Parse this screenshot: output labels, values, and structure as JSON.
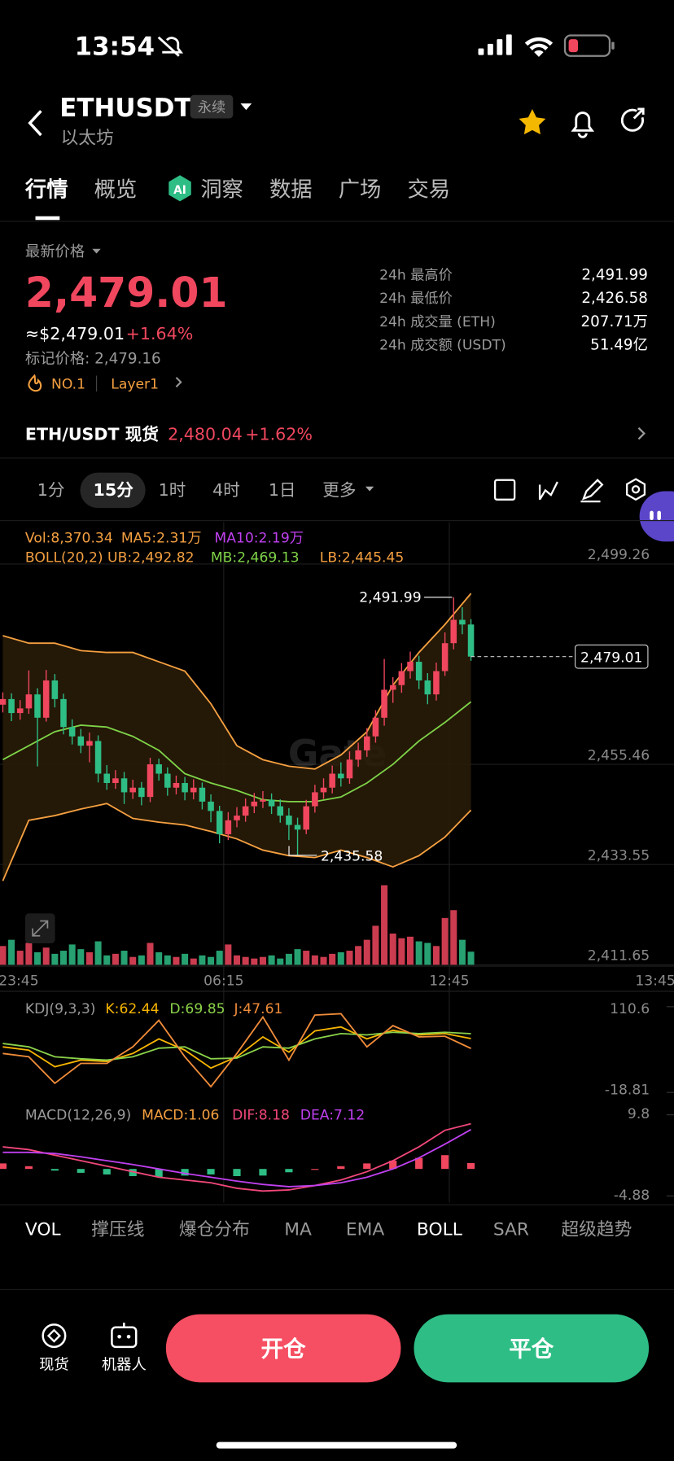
{
  "status_bar": {
    "time": "13:54"
  },
  "header": {
    "symbol": "ETHUSDT",
    "badge": "永续",
    "name": "以太坊"
  },
  "tabs": [
    "行情",
    "概览",
    "洞察",
    "数据",
    "广场",
    "交易"
  ],
  "price": {
    "label": "最新价格",
    "last": "2,479.01",
    "usd": "≈$2,479.01",
    "change": "+1.64%",
    "mark_price": "标记价格: 2,479.16",
    "rank": "NO.1",
    "tag": "Layer1"
  },
  "stats": [
    {
      "label": "24h 最高价",
      "value": "2,491.99"
    },
    {
      "label": "24h 最低价",
      "value": "2,426.58"
    },
    {
      "label": "24h 成交量 (ETH)",
      "value": "207.71万"
    },
    {
      "label": "24h 成交额 (USDT)",
      "value": "51.49亿"
    }
  ],
  "spot": {
    "label": "ETH/USDT 现货",
    "price": "2,480.04",
    "change": "+1.62%"
  },
  "intervals": [
    "1分",
    "15分",
    "1时",
    "4时",
    "1日",
    "更多"
  ],
  "chart": {
    "type": "candlestick",
    "watermark": "Gate",
    "legend_vol": [
      "Vol:8,370.34",
      "MA5:2.31万",
      "MA10:2.19万"
    ],
    "legend_boll": [
      "BOLL(20,2) UB:2,492.82",
      "MB:2,469.13",
      "LB:2,445.45"
    ],
    "up_color": "#f0475e",
    "down_color": "#2ebd85",
    "ylim": [
      2411.65,
      2508.44
    ],
    "yticks": [
      {
        "value": 2499.26,
        "label": "2,499.26"
      },
      {
        "value": 2455.46,
        "label": "2,455.46"
      },
      {
        "value": 2433.55,
        "label": "2,433.55"
      },
      {
        "value": 2411.65,
        "label": "2,411.65"
      }
    ],
    "xlabels": [
      "23:45",
      "06:15",
      "12:45",
      "13:45"
    ],
    "open": [
      2468.5,
      2469.73,
      2466.67,
      2467.69,
      2470.75,
      2465.65,
      2473.8,
      2469.73,
      2463.61,
      2461.57,
      2459.54,
      2460.56,
      2453.42,
      2451.38,
      2452.4,
      2449.35,
      2450.36,
      2448.33,
      2455.46,
      2453.42,
      2450.36,
      2451.38,
      2449.35,
      2450.36,
      2447.31,
      2445.27,
      2440.17,
      2443.23,
      2444.25,
      2446.29,
      2447.31,
      2447.72,
      2446.29,
      2444.25,
      2442.21,
      2441.19,
      2446.29,
      2449.35,
      2450.36,
      2453.42,
      2452.4,
      2456.48,
      2458.52,
      2461.57,
      2465.65,
      2471.76,
      2472.78,
      2475.84,
      2477.88,
      2473.8,
      2470.75,
      2475.84,
      2481.95,
      2487.05,
      2486.03
    ],
    "close": [
      2469.73,
      2466.67,
      2467.69,
      2470.75,
      2465.65,
      2473.8,
      2469.73,
      2463.61,
      2461.57,
      2459.54,
      2460.56,
      2453.42,
      2451.38,
      2452.4,
      2449.35,
      2450.36,
      2448.33,
      2455.46,
      2453.42,
      2450.36,
      2451.38,
      2449.35,
      2450.36,
      2447.31,
      2445.27,
      2440.17,
      2443.23,
      2444.25,
      2446.29,
      2447.31,
      2447.72,
      2446.29,
      2444.25,
      2442.21,
      2441.19,
      2446.29,
      2449.35,
      2450.36,
      2453.42,
      2452.4,
      2456.48,
      2458.52,
      2461.57,
      2465.65,
      2471.76,
      2472.78,
      2475.84,
      2477.88,
      2473.8,
      2470.75,
      2475.84,
      2481.95,
      2487.05,
      2486.03,
      2479.01
    ],
    "high": [
      2471.2,
      2471.0,
      2469.5,
      2476.0,
      2472.1,
      2476.1,
      2475.2,
      2470.9,
      2465.3,
      2463.2,
      2462.4,
      2461.8,
      2455.3,
      2454.2,
      2453.8,
      2452.1,
      2451.6,
      2456.9,
      2456.7,
      2454.8,
      2453.0,
      2452.7,
      2452.2,
      2451.5,
      2448.9,
      2446.4,
      2445.0,
      2446.1,
      2448.0,
      2449.2,
      2449.6,
      2449.1,
      2447.8,
      2445.9,
      2443.8,
      2447.7,
      2451.0,
      2452.4,
      2455.2,
      2455.9,
      2458.3,
      2460.2,
      2463.4,
      2467.3,
      2478.5,
      2474.5,
      2477.6,
      2480.1,
      2479.2,
      2475.4,
      2477.7,
      2484.3,
      2491.99,
      2489.8,
      2487.2
    ],
    "low": [
      2466.8,
      2464.9,
      2465.2,
      2466.5,
      2455.0,
      2464.8,
      2467.9,
      2462.0,
      2459.8,
      2457.9,
      2455.9,
      2451.5,
      2449.9,
      2450.1,
      2446.8,
      2447.9,
      2446.5,
      2447.2,
      2451.9,
      2448.6,
      2448.9,
      2447.6,
      2447.8,
      2445.6,
      2442.8,
      2438.2,
      2438.9,
      2441.7,
      2442.9,
      2444.8,
      2445.9,
      2444.6,
      2442.7,
      2438.9,
      2435.58,
      2440.2,
      2444.9,
      2447.9,
      2449.1,
      2450.6,
      2451.2,
      2454.9,
      2457.1,
      2460.2,
      2463.9,
      2468.9,
      2471.1,
      2474.2,
      2471.9,
      2468.6,
      2469.4,
      2474.8,
      2480.6,
      2483.9,
      2478.1
    ],
    "volume": [
      12000,
      16000,
      9000,
      14000,
      8000,
      11000,
      7000,
      9000,
      13000,
      10000,
      8000,
      15000,
      6000,
      7000,
      9000,
      5000,
      6000,
      14000,
      8000,
      6000,
      5000,
      7000,
      4000,
      6000,
      5000,
      9000,
      13000,
      6000,
      5000,
      4000,
      5000,
      6000,
      4000,
      7000,
      10000,
      9000,
      6000,
      5000,
      7000,
      8000,
      9000,
      12000,
      16000,
      25000,
      51000,
      20000,
      17000,
      18000,
      15000,
      14000,
      12000,
      30000,
      35000,
      16000,
      8370.34
    ],
    "volume_ylim": [
      0,
      55000
    ],
    "high_label": {
      "value": 2491.99,
      "label": "2,491.99"
    },
    "low_label": {
      "value": 2435.58,
      "label": "2,435.58"
    },
    "last": {
      "value": 2479.01,
      "label": "2,479.01"
    },
    "boll": {
      "index": [
        0,
        3,
        6,
        9,
        12,
        15,
        18,
        21,
        24,
        27,
        30,
        33,
        36,
        39,
        42,
        45,
        48,
        51,
        54
      ],
      "ub": [
        2483.58,
        2481.95,
        2481.95,
        2480.32,
        2479.92,
        2479.92,
        2477.88,
        2475.84,
        2468.71,
        2459.54,
        2456.48,
        2455.05,
        2454.44,
        2457.5,
        2462.59,
        2472.78,
        2479.92,
        2486.03,
        2492.82
      ],
      "mb": [
        2456.48,
        2459.54,
        2462.59,
        2464.02,
        2463.61,
        2461.57,
        2458.52,
        2453.42,
        2451.38,
        2449.75,
        2447.72,
        2447.31,
        2447.31,
        2448.33,
        2451.38,
        2455.46,
        2460.56,
        2464.63,
        2469.13
      ],
      "lb": [
        2429.98,
        2443.23,
        2444.25,
        2445.68,
        2446.9,
        2443.64,
        2442.82,
        2442.21,
        2440.79,
        2439.16,
        2436.71,
        2435.49,
        2435.08,
        2436.71,
        2435.08,
        2433.04,
        2435.49,
        2439.56,
        2445.45
      ],
      "band_color": "#2a1c08",
      "ub_color": "#f5a040",
      "mb_color": "#7ed348",
      "lb_color": "#f5a040"
    },
    "kdj": {
      "legend": [
        "KDJ(9,3,3)",
        "K:62.44",
        "D:69.85",
        "J:47.61"
      ],
      "ylim": [
        -18.81,
        110.6
      ],
      "yticks": [
        110.6,
        -18.81
      ],
      "index": [
        0,
        3,
        6,
        9,
        12,
        15,
        18,
        21,
        24,
        27,
        30,
        33,
        36,
        39,
        42,
        45,
        48,
        51,
        54
      ],
      "k": [
        50,
        45,
        20,
        30,
        28,
        40,
        62,
        45,
        18,
        35,
        65,
        42,
        74,
        80,
        62,
        75,
        68,
        70,
        62.44
      ],
      "d": [
        55,
        50,
        35,
        32,
        30,
        35,
        48,
        50,
        32,
        33,
        50,
        48,
        62,
        70,
        68,
        72,
        70,
        72,
        69.85
      ],
      "j": [
        40,
        35,
        -5,
        25,
        25,
        50,
        90,
        35,
        -10,
        40,
        95,
        30,
        98,
        100,
        50,
        82,
        65,
        66,
        47.61
      ],
      "k_color": "#f7b500",
      "d_color": "#8bd24a",
      "j_color": "#f08c3a"
    },
    "macd": {
      "legend": [
        "MACD(12,26,9)",
        "MACD:1.06",
        "DIF:8.18",
        "DEA:7.12"
      ],
      "ylim": [
        -4.88,
        9.8
      ],
      "yticks": [
        9.8,
        -4.88
      ],
      "index": [
        0,
        3,
        6,
        9,
        12,
        15,
        18,
        21,
        24,
        27,
        30,
        33,
        36,
        39,
        42,
        45,
        48,
        51,
        54
      ],
      "macd": [
        1,
        0.5,
        -0.3,
        -0.7,
        -1,
        -1.3,
        -1.5,
        -1.2,
        -1,
        -1.3,
        -1.2,
        -0.6,
        0,
        0.5,
        1,
        1.5,
        2,
        2.5,
        1.06
      ],
      "dif": [
        4,
        3.5,
        2.5,
        1.5,
        0.5,
        -0.5,
        -1.5,
        -2,
        -2.5,
        -3.5,
        -4,
        -3.8,
        -3,
        -2,
        -0.5,
        1.5,
        4,
        7,
        8.18
      ],
      "dea": [
        3,
        3,
        2.8,
        2.2,
        1.5,
        0.8,
        0,
        -0.8,
        -1.5,
        -2.2,
        -2.8,
        -3.2,
        -3,
        -2.5,
        -1.5,
        0,
        2,
        4.5,
        7.12
      ],
      "dif_color": "#f0477a",
      "dea_color": "#c040f0"
    }
  },
  "indicators": [
    "VOL",
    "撑压线",
    "爆仓分布",
    "MA",
    "EMA",
    "BOLL",
    "SAR",
    "超级趋势"
  ],
  "actions": {
    "spot": "现货",
    "bot": "机器人",
    "open": "开仓",
    "close": "平仓"
  }
}
